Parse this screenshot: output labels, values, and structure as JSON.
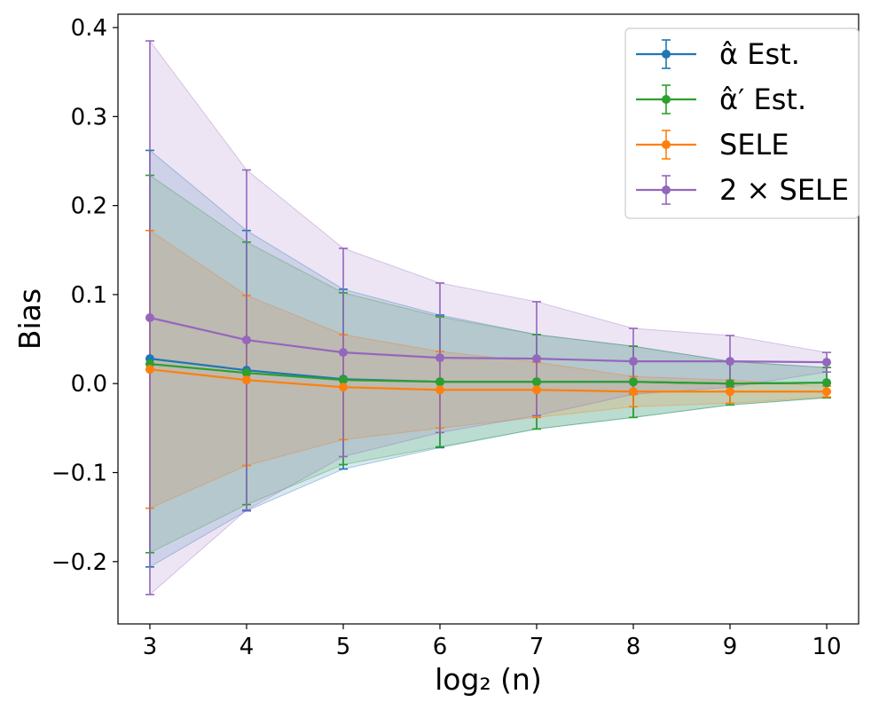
{
  "chart_data": {
    "type": "line",
    "xlabel": "log₂ (n)",
    "ylabel": "Bias",
    "x": [
      3,
      4,
      5,
      6,
      7,
      8,
      9,
      10
    ],
    "xlim": [
      2.67,
      10.33
    ],
    "ylim": [
      -0.27,
      0.415
    ],
    "xticks": [
      3,
      4,
      5,
      6,
      7,
      8,
      9,
      10
    ],
    "yticks": [
      -0.2,
      -0.1,
      0.0,
      0.1,
      0.2,
      0.3,
      0.4
    ],
    "ytick_labels": [
      "−0.2",
      "−0.1",
      "0.0",
      "0.1",
      "0.2",
      "0.3",
      "0.4"
    ],
    "grid": false,
    "legend_position": "top-right",
    "series": [
      {
        "name": "α̂ Est.",
        "color": "#1f77b4",
        "y": [
          0.028,
          0.015,
          0.005,
          0.002,
          0.002,
          0.002,
          0.0,
          0.001
        ],
        "lower": [
          -0.206,
          -0.143,
          -0.096,
          -0.072,
          -0.051,
          -0.038,
          -0.024,
          -0.016
        ],
        "upper": [
          0.262,
          0.172,
          0.106,
          0.077,
          0.055,
          0.042,
          0.025,
          0.018
        ]
      },
      {
        "name": "α̂′ Est.",
        "color": "#2ca02c",
        "y": [
          0.022,
          0.012,
          0.004,
          0.002,
          0.002,
          0.002,
          0.0,
          0.001
        ],
        "lower": [
          -0.19,
          -0.136,
          -0.091,
          -0.071,
          -0.051,
          -0.038,
          -0.024,
          -0.016
        ],
        "upper": [
          0.234,
          0.159,
          0.102,
          0.075,
          0.055,
          0.042,
          0.025,
          0.018
        ]
      },
      {
        "name": "SELE",
        "color": "#ff7f0e",
        "y": [
          0.016,
          0.004,
          -0.004,
          -0.007,
          -0.007,
          -0.009,
          -0.009,
          -0.009
        ],
        "lower": [
          -0.14,
          -0.092,
          -0.063,
          -0.05,
          -0.038,
          -0.026,
          -0.022,
          -0.015
        ],
        "upper": [
          0.172,
          0.099,
          0.055,
          0.036,
          0.024,
          0.008,
          0.004,
          -0.003
        ]
      },
      {
        "name": "2 × SELE",
        "color": "#9467bd",
        "y": [
          0.074,
          0.049,
          0.035,
          0.029,
          0.028,
          0.025,
          0.025,
          0.024
        ],
        "lower": [
          -0.237,
          -0.142,
          -0.082,
          -0.055,
          -0.036,
          -0.012,
          -0.004,
          0.013
        ],
        "upper": [
          0.385,
          0.24,
          0.152,
          0.113,
          0.092,
          0.062,
          0.054,
          0.035
        ]
      }
    ]
  }
}
